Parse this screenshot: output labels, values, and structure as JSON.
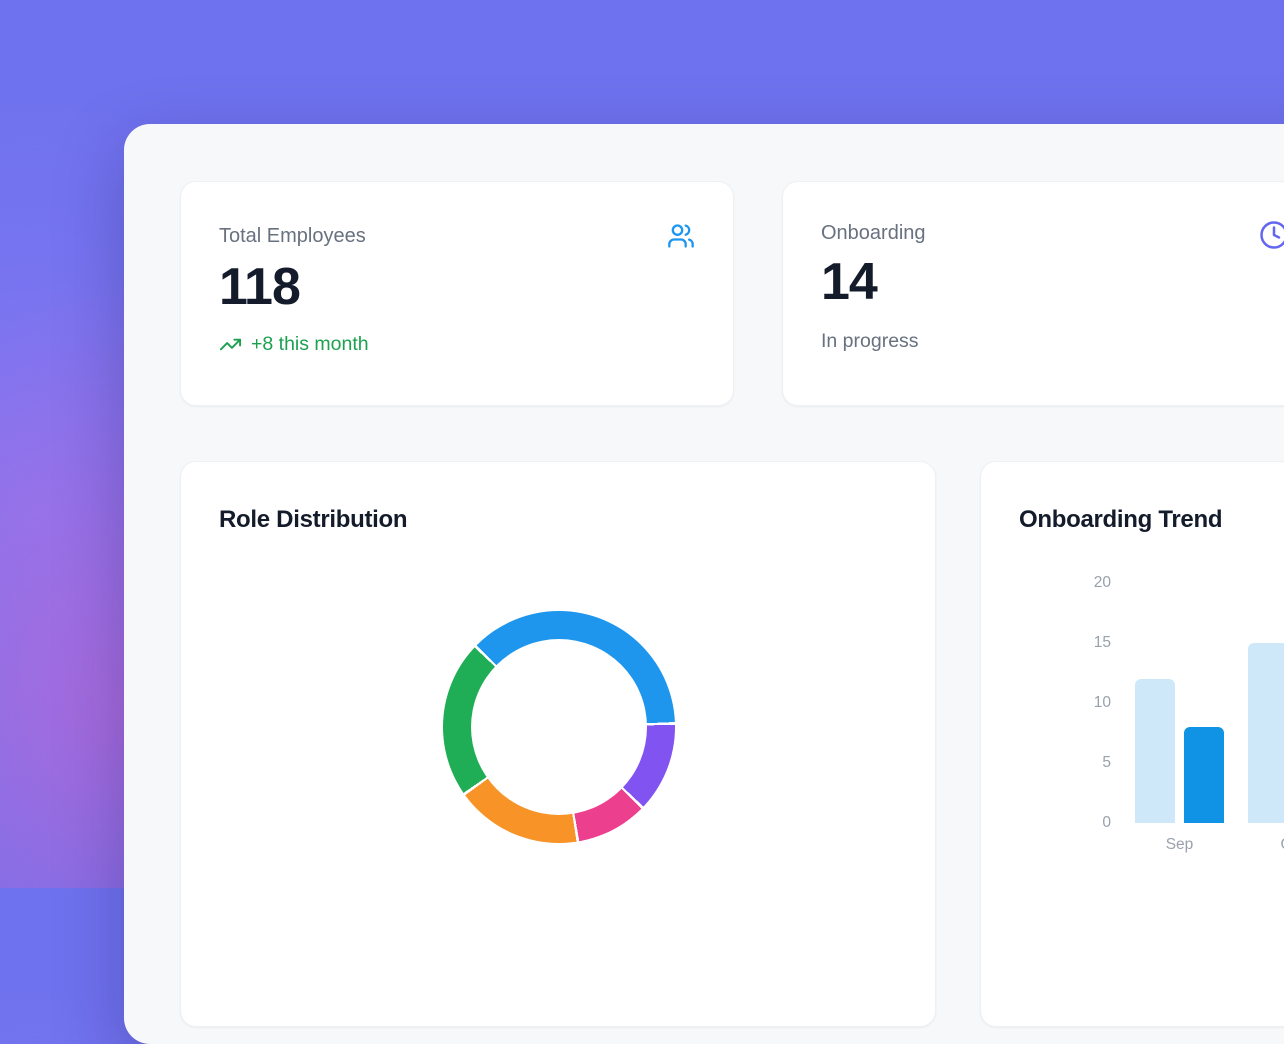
{
  "theme": {
    "page_bg": "#6F72EE",
    "panel_bg": "#F7F8FA",
    "card_bg": "#FFFFFF",
    "title_color": "#141C2B",
    "value_color": "#141C2B",
    "label_color": "#68717F",
    "tick_color": "#99A1AC"
  },
  "stat_cards": [
    {
      "label": "Total Employees",
      "value": "118",
      "trend_text": "+8 this month",
      "trend_color": "#1CA151",
      "icon": "users-icon",
      "icon_color": "#1E96F0"
    },
    {
      "label": "Onboarding",
      "value": "14",
      "sub_text": "In progress",
      "icon": "clock-icon",
      "icon_color": "#6366F1"
    }
  ],
  "chart_data": [
    {
      "type": "pie",
      "variant": "donut",
      "title": "Role Distribution",
      "start_angle_deg": -46,
      "total": 118,
      "legend": "none",
      "segments": [
        {
          "color": "#1E96ED",
          "value": 44
        },
        {
          "color": "#8153F1",
          "value": 15
        },
        {
          "color": "#EC3F8D",
          "value": 12
        },
        {
          "color": "#F79327",
          "value": 21
        },
        {
          "color": "#1FAD55",
          "value": 26
        }
      ]
    },
    {
      "type": "bar",
      "title": "Onboarding Trend",
      "categories": [
        "Sep",
        "Oct"
      ],
      "series": [
        {
          "name": "series-1",
          "color": "#CFE8F9",
          "values": [
            12,
            15
          ]
        },
        {
          "name": "series-2",
          "color": "#1193E5",
          "values": [
            8,
            null
          ]
        }
      ],
      "ylim": [
        0,
        20
      ],
      "yticks": [
        0,
        5,
        10,
        15,
        20
      ],
      "grid": false,
      "legend": "none"
    }
  ]
}
